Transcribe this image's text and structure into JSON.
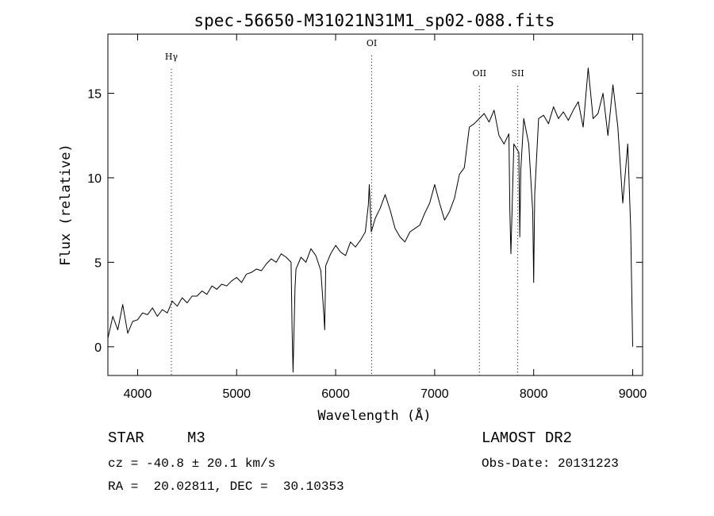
{
  "chart_data": {
    "type": "line",
    "title": "spec-56650-M31021N31M1_sp02-088.fits",
    "xlabel": "Wavelength (Å)",
    "ylabel": "Flux (relative)",
    "xlim": [
      3700,
      9100
    ],
    "ylim": [
      -1.7,
      18.5
    ],
    "xticks": [
      4000,
      5000,
      6000,
      7000,
      8000,
      9000
    ],
    "yticks": [
      0,
      5,
      10,
      15
    ],
    "grid": false,
    "line_color": "#000000",
    "annotations": [
      {
        "label": "Hγ",
        "x": 4341,
        "y": 17.0
      },
      {
        "label": "OI",
        "x": 6364,
        "y": 17.8
      },
      {
        "label": "OII",
        "x": 7452,
        "y": 16.0
      },
      {
        "label": "SII",
        "x": 7839,
        "y": 16.0
      }
    ],
    "series": [
      {
        "x": [
          3700,
          3750,
          3800,
          3850,
          3900,
          3950,
          4000,
          4050,
          4100,
          4150,
          4200,
          4250,
          4300,
          4350,
          4400,
          4450,
          4500,
          4550,
          4600,
          4650,
          4700,
          4750,
          4800,
          4850,
          4900,
          4950,
          5000,
          5050,
          5100,
          5150,
          5200,
          5250,
          5300,
          5350,
          5400,
          5450,
          5500,
          5550,
          5560,
          5570,
          5590,
          5600,
          5650,
          5700,
          5750,
          5800,
          5850,
          5880,
          5890,
          5900,
          5950,
          6000,
          6050,
          6100,
          6150,
          6200,
          6250,
          6300,
          6330,
          6340,
          6360,
          6400,
          6450,
          6500,
          6550,
          6600,
          6650,
          6700,
          6750,
          6800,
          6850,
          6900,
          6950,
          7000,
          7050,
          7100,
          7150,
          7200,
          7250,
          7300,
          7350,
          7400,
          7450,
          7500,
          7550,
          7600,
          7650,
          7700,
          7750,
          7760,
          7770,
          7800,
          7850,
          7860,
          7870,
          7900,
          7950,
          7990,
          8000,
          8010,
          8050,
          8100,
          8150,
          8200,
          8250,
          8300,
          8350,
          8400,
          8450,
          8500,
          8550,
          8600,
          8650,
          8700,
          8750,
          8800,
          8850,
          8900,
          8950,
          8980,
          9000
        ],
        "y": [
          0.5,
          1.8,
          1.0,
          2.5,
          0.8,
          1.5,
          1.6,
          2.0,
          1.9,
          2.3,
          1.8,
          2.2,
          2.0,
          2.7,
          2.4,
          2.9,
          2.6,
          3.0,
          3.0,
          3.3,
          3.1,
          3.6,
          3.4,
          3.7,
          3.6,
          3.9,
          4.1,
          3.8,
          4.3,
          4.4,
          4.6,
          4.5,
          4.9,
          5.2,
          5.0,
          5.5,
          5.3,
          5.0,
          1.0,
          -1.5,
          3.5,
          4.6,
          5.3,
          5.0,
          5.8,
          5.4,
          4.5,
          2.0,
          1.0,
          4.8,
          5.5,
          6.0,
          5.6,
          5.4,
          6.2,
          5.9,
          6.3,
          6.8,
          8.4,
          9.6,
          6.8,
          7.6,
          8.2,
          9.0,
          8.1,
          7.0,
          6.5,
          6.2,
          6.8,
          7.0,
          7.2,
          7.9,
          8.5,
          9.6,
          8.5,
          7.5,
          8.0,
          8.8,
          10.2,
          10.6,
          13.0,
          13.2,
          13.5,
          13.8,
          13.3,
          14.0,
          12.5,
          12.0,
          12.6,
          8.0,
          5.5,
          12.0,
          11.5,
          6.5,
          10.5,
          13.5,
          12.0,
          8.0,
          3.8,
          9.0,
          13.5,
          13.7,
          13.2,
          14.2,
          13.5,
          13.9,
          13.4,
          14.0,
          14.5,
          13.0,
          16.5,
          13.5,
          13.8,
          15.0,
          12.5,
          15.5,
          13.0,
          8.5,
          12.0,
          7.0,
          0.0
        ]
      }
    ]
  },
  "info": {
    "object_type": "STAR",
    "subclass": "M3",
    "survey": "LAMOST DR2",
    "cz": "cz = -40.8 ± 20.1 km/s",
    "obs_date": "Obs-Date: 20131223",
    "coords": "RA =  20.02811, DEC =  30.10353"
  }
}
